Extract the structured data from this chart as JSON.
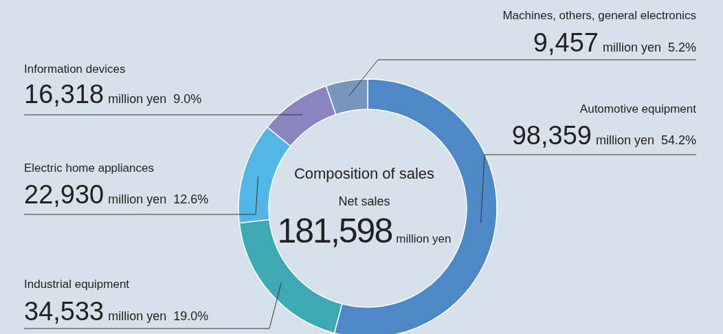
{
  "chart_data": {
    "type": "donut",
    "title": "Composition of sales",
    "subtitle": "Net sales",
    "categories": [
      "Automotive equipment",
      "Industrial equipment",
      "Electric home appliances",
      "Information devices",
      "Machines, others, general electronics"
    ],
    "values": [
      98359,
      34533,
      22930,
      16318,
      9457
    ],
    "colors": [
      "#4f88c6",
      "#40a8b3",
      "#52b6e6",
      "#8a84c2",
      "#7896bd"
    ],
    "value_labels": [
      "98,359",
      "34,533",
      "22,930",
      "16,318",
      "9,457"
    ],
    "annotations": [
      {
        "text": "million yen  54.2%",
        "x": "Automotive equipment"
      },
      {
        "text": "million yen  19.0%",
        "x": "Industrial equipment"
      },
      {
        "text": "million yen  12.6%",
        "x": "Electric home appliances"
      },
      {
        "text": "million yen  9.0%",
        "x": "Information devices"
      },
      {
        "text": "million yen  5.2%",
        "x": "Machines, others, general electronics"
      },
      "181,598",
      "million yen"
    ]
  }
}
